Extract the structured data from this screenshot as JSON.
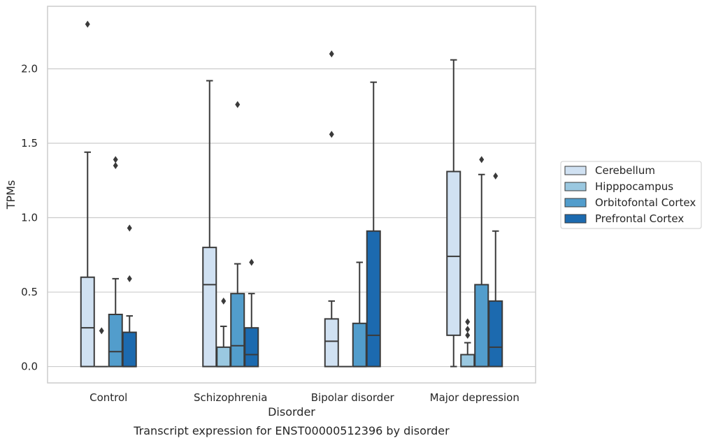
{
  "chart_data": {
    "type": "box",
    "caption": "Transcript expression for ENST00000512396 by disorder",
    "xlabel": "Disorder",
    "ylabel": "TPMs",
    "ylim": [
      -0.11,
      2.42
    ],
    "yticks": [
      "0.0",
      "0.5",
      "1.0",
      "1.5",
      "2.0"
    ],
    "ytick_values": [
      0.0,
      0.5,
      1.0,
      1.5,
      2.0
    ],
    "grid": "horizontal",
    "legend_position": "right",
    "categories": [
      "Control",
      "Schizophrenia",
      "Bipolar disorder",
      "Major depression"
    ],
    "series": [
      {
        "name": "Cerebellum",
        "color": "#d0e1f2",
        "boxes": [
          {
            "min": 0.0,
            "q1": 0.0,
            "median": 0.26,
            "q3": 0.6,
            "max": 1.44,
            "outliers": [
              2.3
            ]
          },
          {
            "min": 0.0,
            "q1": 0.0,
            "median": 0.55,
            "q3": 0.8,
            "max": 1.92,
            "outliers": []
          },
          {
            "min": 0.0,
            "q1": 0.0,
            "median": 0.17,
            "q3": 0.32,
            "max": 0.44,
            "outliers": [
              1.56,
              2.1
            ]
          },
          {
            "min": 0.0,
            "q1": 0.21,
            "median": 0.74,
            "q3": 1.31,
            "max": 2.06,
            "outliers": []
          }
        ]
      },
      {
        "name": "Hipppocampus",
        "color": "#9ac8e0",
        "boxes": [
          {
            "min": 0.0,
            "q1": 0.0,
            "median": 0.0,
            "q3": 0.0,
            "max": 0.0,
            "outliers": [
              0.24
            ]
          },
          {
            "min": 0.0,
            "q1": 0.0,
            "median": 0.0,
            "q3": 0.13,
            "max": 0.27,
            "outliers": [
              0.44
            ]
          },
          {
            "min": 0.0,
            "q1": 0.0,
            "median": 0.0,
            "q3": 0.0,
            "max": 0.0,
            "outliers": []
          },
          {
            "min": 0.0,
            "q1": 0.0,
            "median": 0.0,
            "q3": 0.08,
            "max": 0.16,
            "outliers": [
              0.21,
              0.25,
              0.3
            ]
          }
        ]
      },
      {
        "name": "Orbitofontal Cortex",
        "color": "#529dcc",
        "boxes": [
          {
            "min": 0.0,
            "q1": 0.0,
            "median": 0.1,
            "q3": 0.35,
            "max": 0.59,
            "outliers": [
              1.35,
              1.39
            ]
          },
          {
            "min": 0.0,
            "q1": 0.0,
            "median": 0.14,
            "q3": 0.49,
            "max": 0.69,
            "outliers": [
              1.76
            ]
          },
          {
            "min": 0.0,
            "q1": 0.0,
            "median": 0.0,
            "q3": 0.29,
            "max": 0.7,
            "outliers": []
          },
          {
            "min": 0.0,
            "q1": 0.0,
            "median": 0.0,
            "q3": 0.55,
            "max": 1.29,
            "outliers": [
              1.39
            ]
          }
        ]
      },
      {
        "name": "Prefrontal Cortex",
        "color": "#1c6aaf",
        "boxes": [
          {
            "min": 0.0,
            "q1": 0.0,
            "median": 0.0,
            "q3": 0.23,
            "max": 0.34,
            "outliers": [
              0.59,
              0.93
            ]
          },
          {
            "min": 0.0,
            "q1": 0.0,
            "median": 0.08,
            "q3": 0.26,
            "max": 0.49,
            "outliers": [
              0.7
            ]
          },
          {
            "min": 0.0,
            "q1": 0.0,
            "median": 0.21,
            "q3": 0.91,
            "max": 1.91,
            "outliers": []
          },
          {
            "min": 0.0,
            "q1": 0.0,
            "median": 0.13,
            "q3": 0.44,
            "max": 0.91,
            "outliers": [
              1.28
            ]
          }
        ]
      }
    ]
  }
}
